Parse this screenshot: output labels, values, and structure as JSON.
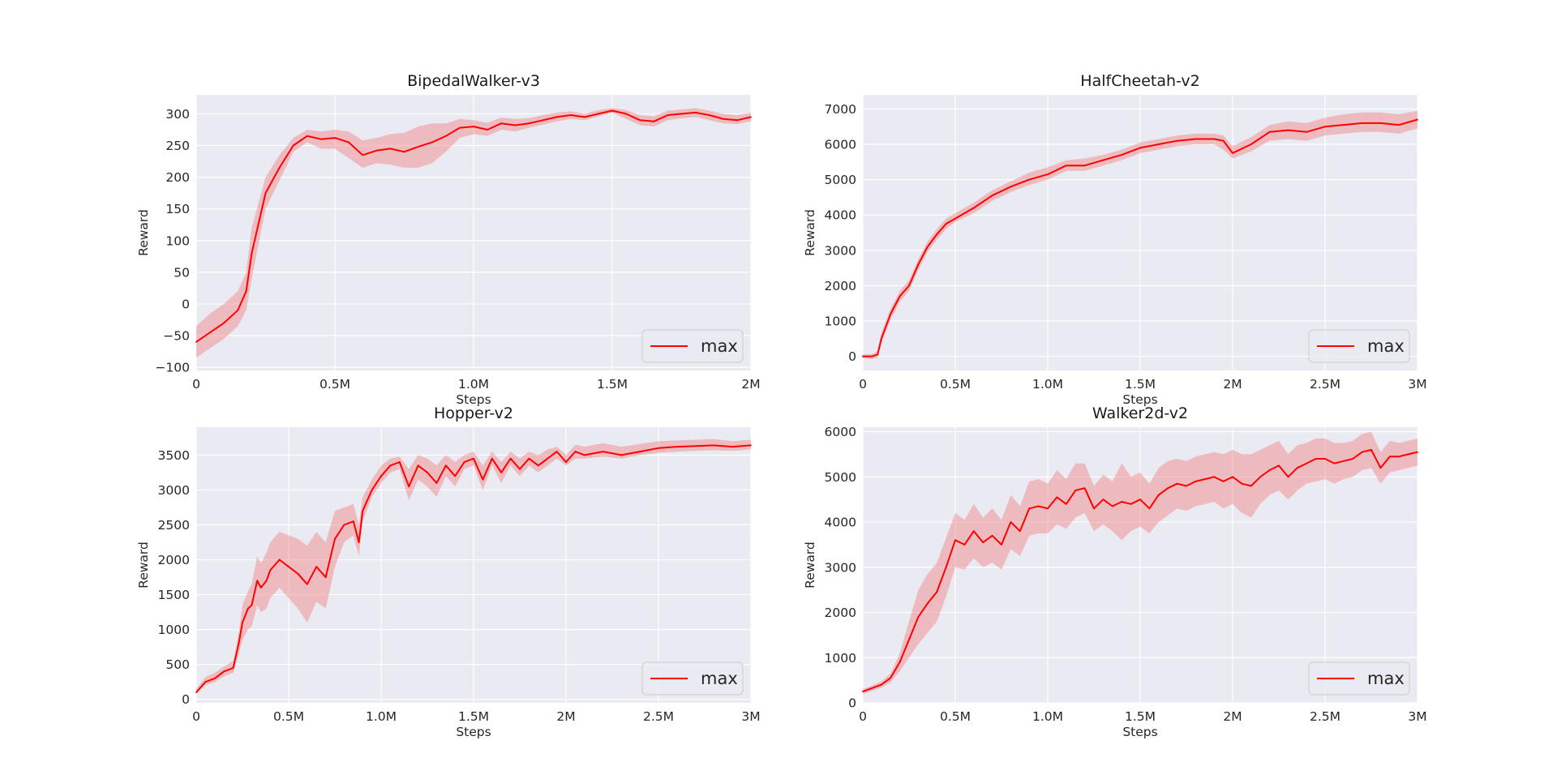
{
  "colors": {
    "line": "#ff0000",
    "band": "#f08080",
    "axes_bg": "#eaeaf2",
    "grid": "#ffffff"
  },
  "chart_data": [
    {
      "type": "line",
      "title": "BipedalWalker-v3",
      "xlabel": "Steps",
      "ylabel": "Reward",
      "xlim": [
        0,
        2000000
      ],
      "ylim": [
        -105,
        330
      ],
      "xticks": [
        0,
        500000,
        1000000,
        1500000,
        2000000
      ],
      "xtick_labels": [
        "0",
        "0.5M",
        "1.0M",
        "1.5M",
        "2M"
      ],
      "yticks": [
        -100,
        -50,
        0,
        50,
        100,
        150,
        200,
        250,
        300
      ],
      "ytick_labels": [
        "−100",
        "−50",
        "0",
        "50",
        "100",
        "150",
        "200",
        "250",
        "300"
      ],
      "grid": true,
      "legend": {
        "position": "lower right",
        "entries": [
          "max"
        ]
      },
      "series": [
        {
          "name": "max",
          "x": [
            0,
            50000,
            100000,
            150000,
            180000,
            200000,
            250000,
            300000,
            350000,
            400000,
            450000,
            500000,
            550000,
            600000,
            650000,
            700000,
            750000,
            800000,
            850000,
            900000,
            950000,
            1000000,
            1050000,
            1100000,
            1150000,
            1200000,
            1250000,
            1300000,
            1350000,
            1400000,
            1450000,
            1500000,
            1550000,
            1600000,
            1650000,
            1700000,
            1750000,
            1800000,
            1850000,
            1900000,
            1950000,
            2000000
          ],
          "y": [
            -60,
            -45,
            -30,
            -10,
            20,
            80,
            175,
            215,
            250,
            265,
            260,
            262,
            255,
            235,
            242,
            245,
            240,
            248,
            255,
            265,
            278,
            280,
            275,
            285,
            282,
            285,
            290,
            295,
            298,
            295,
            300,
            305,
            300,
            290,
            288,
            298,
            300,
            302,
            298,
            292,
            290,
            295
          ],
          "y_lower": [
            -85,
            -70,
            -55,
            -35,
            -10,
            40,
            150,
            195,
            240,
            255,
            245,
            245,
            230,
            215,
            222,
            220,
            215,
            215,
            222,
            240,
            262,
            268,
            265,
            275,
            272,
            278,
            283,
            288,
            292,
            290,
            296,
            302,
            292,
            282,
            280,
            290,
            293,
            295,
            290,
            285,
            284,
            288
          ],
          "y_upper": [
            -35,
            -15,
            0,
            20,
            50,
            120,
            200,
            235,
            262,
            275,
            272,
            275,
            272,
            258,
            262,
            268,
            270,
            280,
            285,
            285,
            292,
            290,
            286,
            294,
            292,
            293,
            298,
            302,
            304,
            300,
            306,
            309,
            306,
            298,
            296,
            305,
            307,
            309,
            305,
            300,
            298,
            302
          ]
        }
      ]
    },
    {
      "type": "line",
      "title": "HalfCheetah-v2",
      "xlabel": "Steps",
      "ylabel": "Reward",
      "xlim": [
        0,
        3000000
      ],
      "ylim": [
        -400,
        7400
      ],
      "xticks": [
        0,
        500000,
        1000000,
        1500000,
        2000000,
        2500000,
        3000000
      ],
      "xtick_labels": [
        "0",
        "0.5M",
        "1.0M",
        "1.5M",
        "2M",
        "2.5M",
        "3M"
      ],
      "yticks": [
        0,
        1000,
        2000,
        3000,
        4000,
        5000,
        6000,
        7000
      ],
      "ytick_labels": [
        "0",
        "1000",
        "2000",
        "3000",
        "4000",
        "5000",
        "6000",
        "7000"
      ],
      "grid": true,
      "legend": {
        "position": "lower right",
        "entries": [
          "max"
        ]
      },
      "series": [
        {
          "name": "max",
          "x": [
            0,
            50000,
            80000,
            100000,
            150000,
            200000,
            250000,
            300000,
            350000,
            400000,
            450000,
            500000,
            600000,
            700000,
            800000,
            900000,
            1000000,
            1100000,
            1200000,
            1300000,
            1400000,
            1500000,
            1600000,
            1700000,
            1800000,
            1900000,
            1950000,
            2000000,
            2100000,
            2200000,
            2300000,
            2400000,
            2500000,
            2600000,
            2700000,
            2800000,
            2900000,
            3000000
          ],
          "y": [
            0,
            0,
            50,
            500,
            1200,
            1700,
            2000,
            2600,
            3100,
            3450,
            3750,
            3900,
            4200,
            4550,
            4800,
            5000,
            5150,
            5400,
            5400,
            5550,
            5700,
            5900,
            6000,
            6100,
            6150,
            6150,
            6100,
            5750,
            6000,
            6350,
            6400,
            6350,
            6500,
            6550,
            6600,
            6600,
            6550,
            6700
          ],
          "y_lower": [
            -50,
            -80,
            -40,
            350,
            1050,
            1550,
            1850,
            2450,
            2950,
            3300,
            3600,
            3800,
            4050,
            4400,
            4650,
            4850,
            5000,
            5250,
            5250,
            5400,
            5550,
            5750,
            5850,
            5950,
            6000,
            6000,
            5850,
            5600,
            5800,
            6100,
            6150,
            6100,
            6250,
            6300,
            6350,
            6350,
            6300,
            6450
          ],
          "y_upper": [
            50,
            60,
            150,
            650,
            1350,
            1850,
            2150,
            2750,
            3250,
            3600,
            3900,
            4050,
            4350,
            4700,
            4950,
            5200,
            5350,
            5550,
            5600,
            5700,
            5850,
            6050,
            6150,
            6250,
            6300,
            6300,
            6250,
            5950,
            6200,
            6550,
            6650,
            6600,
            6750,
            6850,
            6900,
            6900,
            6850,
            6950
          ]
        }
      ]
    },
    {
      "type": "line",
      "title": "Hopper-v2",
      "xlabel": "Steps",
      "ylabel": "Reward",
      "xlim": [
        0,
        3000000
      ],
      "ylim": [
        -50,
        3900
      ],
      "xticks": [
        0,
        500000,
        1000000,
        1500000,
        2000000,
        2500000,
        3000000
      ],
      "xtick_labels": [
        "0",
        "0.5M",
        "1.0M",
        "1.5M",
        "2M",
        "2.5M",
        "3M"
      ],
      "yticks": [
        0,
        500,
        1000,
        1500,
        2000,
        2500,
        3000,
        3500
      ],
      "ytick_labels": [
        "0",
        "500",
        "1000",
        "1500",
        "2000",
        "2500",
        "3000",
        "3500"
      ],
      "grid": true,
      "legend": {
        "position": "lower right",
        "entries": [
          "max"
        ]
      },
      "series": [
        {
          "name": "max",
          "x": [
            0,
            50000,
            100000,
            150000,
            200000,
            230000,
            250000,
            280000,
            300000,
            330000,
            350000,
            380000,
            400000,
            450000,
            500000,
            550000,
            600000,
            650000,
            700000,
            750000,
            800000,
            850000,
            880000,
            900000,
            950000,
            1000000,
            1050000,
            1100000,
            1150000,
            1200000,
            1250000,
            1300000,
            1350000,
            1400000,
            1450000,
            1500000,
            1550000,
            1600000,
            1650000,
            1700000,
            1750000,
            1800000,
            1850000,
            1900000,
            1950000,
            2000000,
            2050000,
            2100000,
            2200000,
            2300000,
            2400000,
            2500000,
            2600000,
            2700000,
            2800000,
            2900000,
            3000000
          ],
          "y": [
            100,
            250,
            300,
            400,
            450,
            800,
            1100,
            1300,
            1350,
            1700,
            1600,
            1700,
            1850,
            2000,
            1900,
            1800,
            1650,
            1900,
            1750,
            2300,
            2500,
            2550,
            2250,
            2700,
            3000,
            3200,
            3350,
            3400,
            3050,
            3350,
            3250,
            3100,
            3350,
            3200,
            3400,
            3450,
            3150,
            3450,
            3250,
            3450,
            3300,
            3450,
            3350,
            3450,
            3550,
            3400,
            3550,
            3500,
            3550,
            3500,
            3550,
            3600,
            3620,
            3630,
            3640,
            3620,
            3640
          ],
          "y_lower": [
            80,
            200,
            250,
            330,
            380,
            650,
            850,
            1000,
            1050,
            1350,
            1250,
            1300,
            1450,
            1600,
            1450,
            1300,
            1100,
            1400,
            1300,
            1900,
            2250,
            2350,
            2050,
            2550,
            2900,
            3100,
            3250,
            3300,
            2850,
            3150,
            3050,
            2900,
            3200,
            3050,
            3300,
            3350,
            3000,
            3350,
            3100,
            3350,
            3200,
            3350,
            3250,
            3350,
            3450,
            3350,
            3450,
            3450,
            3480,
            3450,
            3500,
            3530,
            3550,
            3560,
            3570,
            3560,
            3580
          ],
          "y_upper": [
            150,
            320,
            380,
            470,
            550,
            950,
            1350,
            1550,
            1650,
            2050,
            1950,
            2100,
            2250,
            2400,
            2350,
            2300,
            2200,
            2400,
            2250,
            2700,
            2750,
            2800,
            2500,
            2900,
            3150,
            3350,
            3450,
            3480,
            3300,
            3500,
            3450,
            3350,
            3500,
            3400,
            3500,
            3550,
            3350,
            3550,
            3400,
            3550,
            3450,
            3550,
            3500,
            3580,
            3620,
            3500,
            3650,
            3620,
            3670,
            3620,
            3660,
            3700,
            3710,
            3720,
            3730,
            3700,
            3720
          ]
        }
      ]
    },
    {
      "type": "line",
      "title": "Walker2d-v2",
      "xlabel": "Steps",
      "ylabel": "Reward",
      "xlim": [
        0,
        3000000
      ],
      "ylim": [
        0,
        6100
      ],
      "xticks": [
        0,
        500000,
        1000000,
        1500000,
        2000000,
        2500000,
        3000000
      ],
      "xtick_labels": [
        "0",
        "0.5M",
        "1.0M",
        "1.5M",
        "2M",
        "2.5M",
        "3M"
      ],
      "yticks": [
        0,
        1000,
        2000,
        3000,
        4000,
        5000,
        6000
      ],
      "ytick_labels": [
        "0",
        "1000",
        "2000",
        "3000",
        "4000",
        "5000",
        "6000"
      ],
      "grid": true,
      "legend": {
        "position": "lower right",
        "entries": [
          "max"
        ]
      },
      "series": [
        {
          "name": "max",
          "x": [
            0,
            100000,
            150000,
            200000,
            250000,
            300000,
            350000,
            400000,
            450000,
            500000,
            550000,
            600000,
            650000,
            700000,
            750000,
            800000,
            850000,
            900000,
            950000,
            1000000,
            1050000,
            1100000,
            1150000,
            1200000,
            1250000,
            1300000,
            1350000,
            1400000,
            1450000,
            1500000,
            1550000,
            1600000,
            1650000,
            1700000,
            1750000,
            1800000,
            1850000,
            1900000,
            1950000,
            2000000,
            2050000,
            2100000,
            2150000,
            2200000,
            2250000,
            2300000,
            2350000,
            2400000,
            2450000,
            2500000,
            2550000,
            2600000,
            2650000,
            2700000,
            2750000,
            2800000,
            2850000,
            2900000,
            2950000,
            3000000
          ],
          "y": [
            250,
            400,
            550,
            900,
            1400,
            1900,
            2200,
            2450,
            3000,
            3600,
            3500,
            3800,
            3550,
            3700,
            3500,
            4000,
            3800,
            4300,
            4350,
            4300,
            4550,
            4400,
            4700,
            4750,
            4300,
            4500,
            4350,
            4450,
            4400,
            4500,
            4300,
            4600,
            4750,
            4850,
            4800,
            4900,
            4950,
            5000,
            4900,
            5000,
            4850,
            4800,
            5000,
            5150,
            5250,
            5000,
            5200,
            5300,
            5400,
            5400,
            5300,
            5350,
            5400,
            5550,
            5600,
            5200,
            5450,
            5450,
            5500,
            5550
          ],
          "y_lower": [
            200,
            330,
            450,
            700,
            1000,
            1300,
            1550,
            1800,
            2350,
            3000,
            2950,
            3200,
            3000,
            3100,
            2950,
            3400,
            3250,
            3700,
            3750,
            3750,
            3950,
            3850,
            4100,
            4200,
            3800,
            3950,
            3800,
            3600,
            3800,
            3900,
            3750,
            4000,
            4150,
            4300,
            4250,
            4350,
            4400,
            4450,
            4300,
            4400,
            4200,
            4100,
            4400,
            4600,
            4700,
            4500,
            4700,
            4850,
            4900,
            4950,
            4850,
            4950,
            5000,
            5150,
            5200,
            4850,
            5100,
            5150,
            5200,
            5250
          ],
          "y_upper": [
            300,
            470,
            650,
            1100,
            1800,
            2500,
            2850,
            3100,
            3650,
            4200,
            4050,
            4400,
            4100,
            4300,
            4050,
            4600,
            4350,
            4900,
            4950,
            4850,
            5150,
            4950,
            5300,
            5300,
            4800,
            5050,
            4900,
            5300,
            5000,
            5100,
            4850,
            5200,
            5350,
            5400,
            5350,
            5450,
            5500,
            5550,
            5500,
            5600,
            5500,
            5500,
            5600,
            5700,
            5800,
            5500,
            5700,
            5750,
            5850,
            5850,
            5750,
            5750,
            5800,
            5950,
            6000,
            5550,
            5800,
            5750,
            5800,
            5850
          ]
        }
      ]
    }
  ]
}
